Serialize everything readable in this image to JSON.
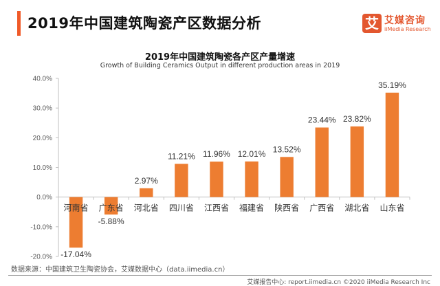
{
  "header": {
    "title": "2019年中国建筑陶瓷产区数据分析",
    "accent_color": "#f05a28"
  },
  "logo": {
    "glyph": "艾",
    "name_cn": "艾媒咨询",
    "name_en": "iiMedia Research"
  },
  "chart_data": {
    "type": "bar",
    "title": "2019年中国建筑陶瓷各产区产量增速",
    "subtitle": "Growth of  Building Ceramics Output in different production areas in 2019",
    "xlabel": "",
    "ylabel": "",
    "categories": [
      "河南省",
      "广东省",
      "河北省",
      "四川省",
      "江西省",
      "福建省",
      "陕西省",
      "广西省",
      "湖北省",
      "山东省"
    ],
    "values": [
      -17.04,
      -5.88,
      2.97,
      11.21,
      11.96,
      12.01,
      13.52,
      23.44,
      23.82,
      35.19
    ],
    "data_labels": [
      "-17.04%",
      "-5.88%",
      "2.97%",
      "11.21%",
      "11.96%",
      "12.01%",
      "13.52%",
      "23.44%",
      "23.82%",
      "35.19%"
    ],
    "ylim": [
      -20,
      40
    ],
    "yticks": [
      40,
      30,
      20,
      10,
      0,
      -10,
      -20
    ],
    "ytick_labels": [
      "40.0%",
      "30.0%",
      "20.0%",
      "10.0%",
      "0.0%",
      "-10.0%",
      "-20.0%"
    ],
    "bar_color": "#ed7d31",
    "grid": false,
    "legend": "none"
  },
  "source": "数据来源：中国建筑卫生陶瓷协会，艾媒数据中心（data.iimedia.cn）",
  "footer": "艾媒报告中心: report.iimedia.cn  ©2020  iiMedia Research Inc"
}
